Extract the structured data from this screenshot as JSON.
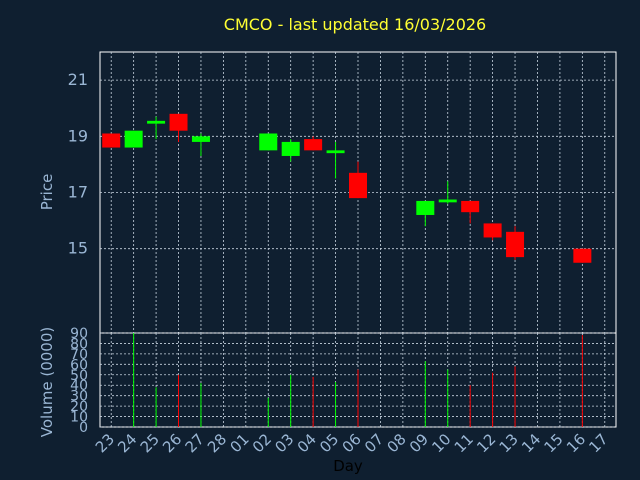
{
  "chart_data": {
    "title": "CMCO - last updated 16/03/2026",
    "xlabel": "Day",
    "price_panel": {
      "type": "candlestick",
      "ylabel": "Price",
      "ylim": [
        12.0,
        22.0
      ],
      "yticks": [
        15,
        17,
        19,
        21
      ],
      "grid": true
    },
    "volume_panel": {
      "type": "bar",
      "ylabel": "Volume (0000)",
      "ylim": [
        0,
        90
      ],
      "yticks": [
        0,
        10,
        20,
        30,
        40,
        50,
        60,
        70,
        80,
        90
      ],
      "grid": true
    },
    "categories": [
      "23",
      "24",
      "25",
      "26",
      "27",
      "28",
      "01",
      "02",
      "03",
      "04",
      "05",
      "06",
      "07",
      "08",
      "09",
      "10",
      "11",
      "12",
      "13",
      "14",
      "15",
      "16",
      "17"
    ],
    "candles": [
      {
        "day": "23",
        "open": 19.1,
        "high": 19.1,
        "low": 18.6,
        "close": 18.6,
        "volume": 0
      },
      {
        "day": "24",
        "open": 18.6,
        "high": 19.2,
        "low": 18.6,
        "close": 19.2,
        "volume": 90
      },
      {
        "day": "25",
        "open": 19.45,
        "high": 19.7,
        "low": 18.9,
        "close": 19.55,
        "volume": 38
      },
      {
        "day": "26",
        "open": 19.8,
        "high": 19.8,
        "low": 18.8,
        "close": 19.2,
        "volume": 50
      },
      {
        "day": "27",
        "open": 18.8,
        "high": 19.1,
        "low": 18.3,
        "close": 19.0,
        "volume": 42
      },
      {
        "day": "02",
        "open": 18.5,
        "high": 19.1,
        "low": 18.5,
        "close": 19.1,
        "volume": 28
      },
      {
        "day": "03",
        "open": 18.3,
        "high": 18.9,
        "low": 18.1,
        "close": 18.8,
        "volume": 50
      },
      {
        "day": "04",
        "open": 18.9,
        "high": 19.0,
        "low": 18.5,
        "close": 18.5,
        "volume": 48
      },
      {
        "day": "05",
        "open": 18.4,
        "high": 18.8,
        "low": 17.5,
        "close": 18.5,
        "volume": 43
      },
      {
        "day": "06",
        "open": 17.7,
        "high": 18.1,
        "low": 16.8,
        "close": 16.8,
        "volume": 55
      },
      {
        "day": "09",
        "open": 16.2,
        "high": 16.7,
        "low": 15.8,
        "close": 16.7,
        "volume": 63
      },
      {
        "day": "10",
        "open": 16.65,
        "high": 17.4,
        "low": 16.6,
        "close": 16.75,
        "volume": 55
      },
      {
        "day": "11",
        "open": 16.7,
        "high": 16.7,
        "low": 15.9,
        "close": 16.3,
        "volume": 40
      },
      {
        "day": "12",
        "open": 15.9,
        "high": 15.9,
        "low": 15.3,
        "close": 15.4,
        "volume": 52
      },
      {
        "day": "13",
        "open": 15.6,
        "high": 15.8,
        "low": 14.6,
        "close": 14.7,
        "volume": 58
      },
      {
        "day": "16",
        "open": 15.0,
        "high": 15.0,
        "low": 14.5,
        "close": 14.5,
        "volume": 88
      }
    ],
    "colors": {
      "background": "#0f1f30",
      "up": "#00ff00",
      "down": "#ff0000",
      "title": "#ffff33",
      "tick": "#9ab6d4",
      "grid": "#c8d4e0"
    }
  }
}
